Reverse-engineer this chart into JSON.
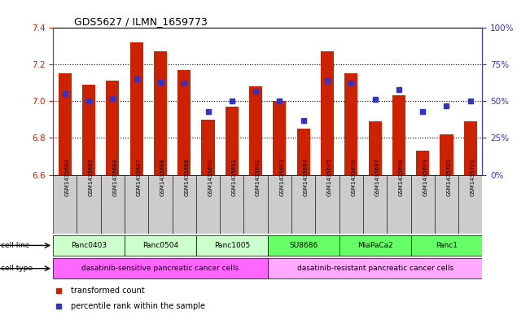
{
  "title": "GDS5627 / ILMN_1659773",
  "samples": [
    "GSM1435684",
    "GSM1435685",
    "GSM1435686",
    "GSM1435687",
    "GSM1435688",
    "GSM1435689",
    "GSM1435690",
    "GSM1435691",
    "GSM1435692",
    "GSM1435693",
    "GSM1435694",
    "GSM1435695",
    "GSM1435696",
    "GSM1435697",
    "GSM1435698",
    "GSM1435699",
    "GSM1435700",
    "GSM1435701"
  ],
  "bar_values": [
    7.15,
    7.09,
    7.11,
    7.32,
    7.27,
    7.17,
    6.9,
    6.97,
    7.08,
    7.0,
    6.85,
    7.27,
    7.15,
    6.89,
    7.03,
    6.73,
    6.82,
    6.89
  ],
  "percentile_values": [
    55,
    50,
    52,
    65,
    63,
    62,
    43,
    50,
    57,
    50,
    37,
    64,
    62,
    51,
    58,
    43,
    47,
    50
  ],
  "ylim_left": [
    6.6,
    7.4
  ],
  "ylim_right": [
    0,
    100
  ],
  "yticks_left": [
    6.6,
    6.8,
    7.0,
    7.2,
    7.4
  ],
  "yticks_right": [
    0,
    25,
    50,
    75,
    100
  ],
  "ytick_labels_right": [
    "0%",
    "25%",
    "50%",
    "75%",
    "100%"
  ],
  "bar_color": "#cc2200",
  "dot_color": "#3333cc",
  "bar_baseline": 6.6,
  "cell_lines": [
    {
      "name": "Panc0403",
      "start": 0,
      "end": 2,
      "color": "#ccffcc"
    },
    {
      "name": "Panc0504",
      "start": 3,
      "end": 5,
      "color": "#ccffcc"
    },
    {
      "name": "Panc1005",
      "start": 6,
      "end": 8,
      "color": "#ccffcc"
    },
    {
      "name": "SU8686",
      "start": 9,
      "end": 11,
      "color": "#66ff66"
    },
    {
      "name": "MiaPaCa2",
      "start": 12,
      "end": 14,
      "color": "#66ff66"
    },
    {
      "name": "Panc1",
      "start": 15,
      "end": 17,
      "color": "#66ff66"
    }
  ],
  "cell_types": [
    {
      "name": "dasatinib-sensitive pancreatic cancer cells",
      "start": 0,
      "end": 8,
      "color": "#ff66ff"
    },
    {
      "name": "dasatinib-resistant pancreatic cancer cells",
      "start": 9,
      "end": 17,
      "color": "#ffaaff"
    }
  ],
  "legend_items": [
    {
      "label": "transformed count",
      "color": "#cc2200"
    },
    {
      "label": "percentile rank within the sample",
      "color": "#3333cc"
    }
  ],
  "left_axis_color": "#cc2200",
  "right_axis_color": "#3333cc",
  "sample_box_color": "#cccccc",
  "grid_yticks": [
    6.8,
    7.0,
    7.2
  ]
}
